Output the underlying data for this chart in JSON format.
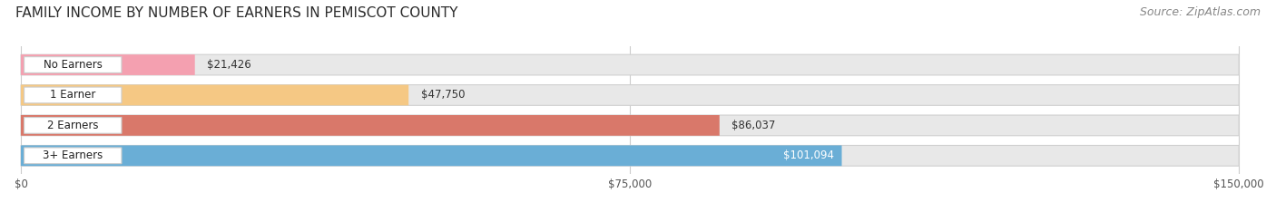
{
  "title": "FAMILY INCOME BY NUMBER OF EARNERS IN PEMISCOT COUNTY",
  "source": "Source: ZipAtlas.com",
  "categories": [
    "No Earners",
    "1 Earner",
    "2 Earners",
    "3+ Earners"
  ],
  "values": [
    21426,
    47750,
    86037,
    101094
  ],
  "bar_colors": [
    "#f4a0b0",
    "#f5c884",
    "#d9786a",
    "#6aaed6"
  ],
  "label_colors": [
    "#333333",
    "#333333",
    "#333333",
    "#ffffff"
  ],
  "xlim": [
    0,
    150000
  ],
  "xticks": [
    0,
    75000,
    150000
  ],
  "xtick_labels": [
    "$0",
    "$75,000",
    "$150,000"
  ],
  "value_labels": [
    "$21,426",
    "$47,750",
    "$86,037",
    "$101,094"
  ],
  "background_color": "#ffffff",
  "bar_background_color": "#e8e8e8",
  "title_fontsize": 11,
  "source_fontsize": 9
}
